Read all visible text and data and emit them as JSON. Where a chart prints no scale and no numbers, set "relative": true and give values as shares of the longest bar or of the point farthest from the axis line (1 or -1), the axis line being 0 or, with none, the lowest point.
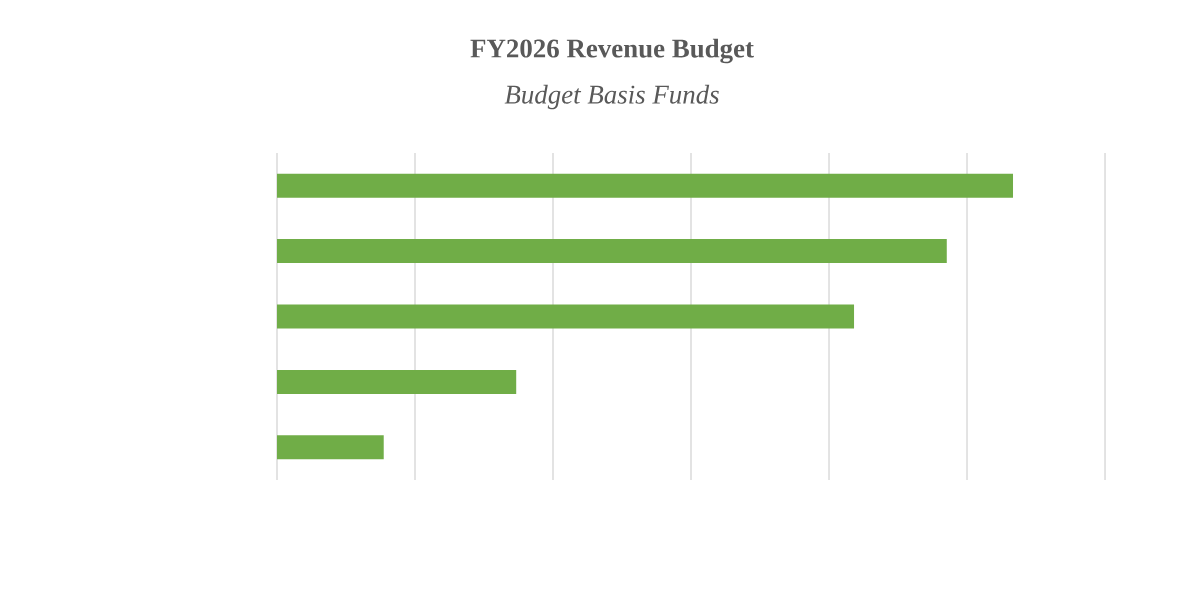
{
  "chart_data": {
    "type": "bar",
    "orientation": "horizontal",
    "relative": true,
    "title": "FY2026 Revenue Budget",
    "subtitle": "*Budget Basis Funds*",
    "categories": [
      null,
      null,
      null,
      null,
      null
    ],
    "values": [
      1,
      0.91,
      0.784,
      0.325,
      0.145
    ],
    "color": "#70ad47",
    "grid": "x"
  }
}
